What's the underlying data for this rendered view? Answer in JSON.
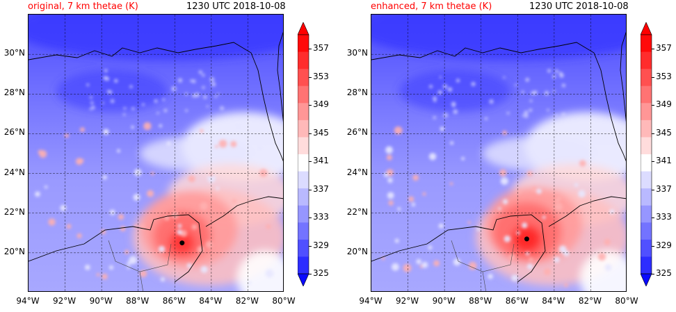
{
  "panels": [
    {
      "title_left": "original, 7 km thetae (K)",
      "title_right": "1230 UTC 2018-10-08",
      "storm_center": {
        "lon": -85.6,
        "lat": 20.5
      },
      "warm_core_strength": 0.8
    },
    {
      "title_left": "enhanced, 7 km thetae (K)",
      "title_right": "1230 UTC 2018-10-08",
      "storm_center": {
        "lon": -85.5,
        "lat": 20.7
      },
      "warm_core_strength": 1.0
    }
  ],
  "lat_labels": [
    "30°N",
    "28°N",
    "26°N",
    "24°N",
    "22°N",
    "20°N"
  ],
  "lat_values": [
    30,
    28,
    26,
    24,
    22,
    20
  ],
  "lon_labels": [
    "94°W",
    "92°W",
    "90°W",
    "88°W",
    "86°W",
    "84°W",
    "82°W",
    "80°W"
  ],
  "lon_values": [
    -94,
    -92,
    -90,
    -88,
    -86,
    -84,
    -82,
    -80
  ],
  "colorbar": {
    "labels": [
      "357",
      "353",
      "349",
      "345",
      "341",
      "337",
      "333",
      "329",
      "325"
    ],
    "values": [
      357,
      353,
      349,
      345,
      341,
      337,
      333,
      329,
      325
    ],
    "min": 325,
    "max": 359,
    "colors": [
      "#0a0aff",
      "#2d2dff",
      "#5050ff",
      "#7373ff",
      "#9696ff",
      "#b9b9ff",
      "#dcdcff",
      "#ffffff",
      "#ffdcdc",
      "#ffb9b9",
      "#ff9696",
      "#ff7373",
      "#ff5050",
      "#ff2d2d",
      "#ff0a0a",
      "#ff0000"
    ]
  },
  "colors": {
    "title_accent": "#ff0000",
    "grid": "#000000",
    "coast": "#000000",
    "storm_marker": "#000000"
  }
}
